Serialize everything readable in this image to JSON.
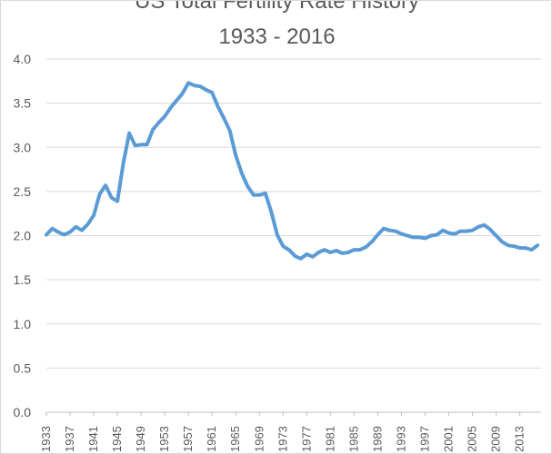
{
  "chart_data": {
    "type": "line",
    "title": "US Total Fertility Rate History",
    "subtitle": "1933 - 2016",
    "xlabel": "",
    "ylabel": "",
    "ylim": [
      0,
      4.0
    ],
    "yticks": [
      "0.0",
      "0.5",
      "1.0",
      "1.5",
      "2.0",
      "2.5",
      "3.0",
      "3.5",
      "4.0"
    ],
    "xtick_labels": [
      "1933",
      "1937",
      "1941",
      "1945",
      "1949",
      "1953",
      "1957",
      "1961",
      "1965",
      "1969",
      "1973",
      "1977",
      "1981",
      "1985",
      "1989",
      "1993",
      "1997",
      "2001",
      "2005",
      "2009",
      "2013"
    ],
    "grid": true,
    "legend": "none",
    "color": "#5b9bd5",
    "x": [
      1933,
      1934,
      1935,
      1936,
      1937,
      1938,
      1939,
      1940,
      1941,
      1942,
      1943,
      1944,
      1945,
      1946,
      1947,
      1948,
      1949,
      1950,
      1951,
      1952,
      1953,
      1954,
      1955,
      1956,
      1957,
      1958,
      1959,
      1960,
      1961,
      1962,
      1963,
      1964,
      1965,
      1966,
      1967,
      1968,
      1969,
      1970,
      1971,
      1972,
      1973,
      1974,
      1975,
      1976,
      1977,
      1978,
      1979,
      1980,
      1981,
      1982,
      1983,
      1984,
      1985,
      1986,
      1987,
      1988,
      1989,
      1990,
      1991,
      1992,
      1993,
      1994,
      1995,
      1996,
      1997,
      1998,
      1999,
      2000,
      2001,
      2002,
      2003,
      2004,
      2005,
      2006,
      2007,
      2008,
      2009,
      2010,
      2011,
      2012,
      2013,
      2014,
      2015,
      2016
    ],
    "values": [
      2.01,
      2.08,
      2.04,
      2.01,
      2.04,
      2.1,
      2.06,
      2.13,
      2.23,
      2.47,
      2.57,
      2.43,
      2.39,
      2.82,
      3.16,
      3.02,
      3.03,
      3.03,
      3.2,
      3.28,
      3.35,
      3.45,
      3.53,
      3.61,
      3.73,
      3.7,
      3.69,
      3.65,
      3.62,
      3.46,
      3.33,
      3.19,
      2.91,
      2.71,
      2.56,
      2.46,
      2.46,
      2.48,
      2.27,
      2.01,
      1.88,
      1.84,
      1.77,
      1.74,
      1.79,
      1.76,
      1.81,
      1.84,
      1.81,
      1.83,
      1.8,
      1.81,
      1.84,
      1.84,
      1.87,
      1.93,
      2.01,
      2.08,
      2.06,
      2.05,
      2.02,
      2.0,
      1.98,
      1.98,
      1.97,
      2.0,
      2.01,
      2.06,
      2.03,
      2.02,
      2.05,
      2.05,
      2.06,
      2.1,
      2.12,
      2.07,
      2.0,
      1.93,
      1.89,
      1.88,
      1.86,
      1.86,
      1.84,
      1.89
    ]
  }
}
